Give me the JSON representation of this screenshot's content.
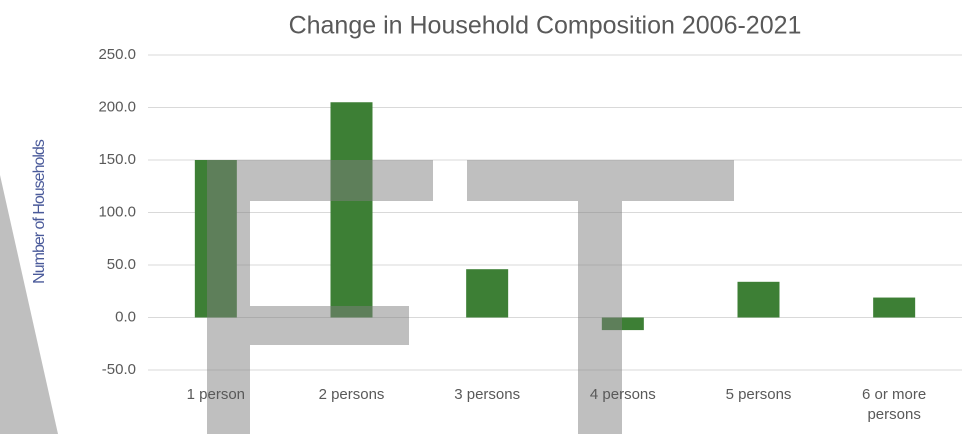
{
  "chart_data": {
    "type": "bar",
    "title": "Change in Household Composition 2006-2021",
    "y_label": "Number of Households",
    "categories": [
      "1 person",
      "2 persons",
      "3 persons",
      "4 persons",
      "5 persons",
      "6 or more persons"
    ],
    "values": [
      150,
      205,
      46,
      -12,
      34,
      19
    ],
    "color": "#3d7f35",
    "ylim": [
      -50,
      250
    ],
    "yticks": [
      {
        "value": -50,
        "label": "-50.0"
      },
      {
        "value": 0,
        "label": "0.0"
      },
      {
        "value": 50,
        "label": "50.0"
      },
      {
        "value": 100,
        "label": "100.0"
      },
      {
        "value": 150,
        "label": "150.0"
      },
      {
        "value": 200,
        "label": "200.0"
      },
      {
        "value": 250,
        "label": "250.0"
      }
    ],
    "grid": true
  }
}
